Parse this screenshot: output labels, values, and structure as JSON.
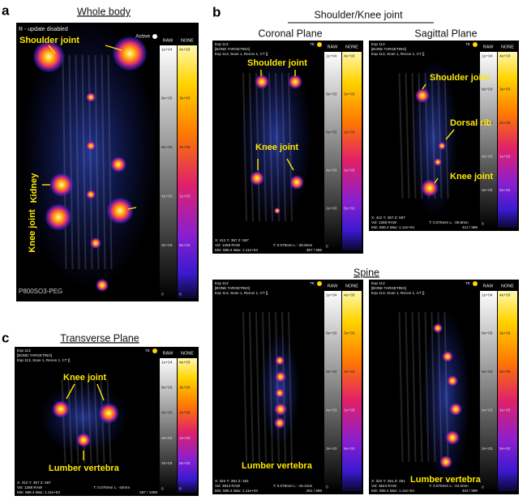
{
  "panels": {
    "a": {
      "label": "a",
      "title": "Whole body",
      "image": {
        "header": [
          "R - update disabled"
        ],
        "status": [
          "Active"
        ],
        "scale_heads": [
          "RAW",
          "NONE"
        ],
        "raw_ticks": [
          "1e+04",
          "8e+03",
          "6e+03",
          "4e+03",
          "2e+03",
          "0"
        ],
        "color_ticks": [
          "4e+03",
          "3e+03",
          "2e+03",
          "1e+03",
          "5e+02",
          "0"
        ],
        "annotations": [
          "Shoulder joint",
          "Kidney",
          "Knee joint"
        ],
        "footer": [
          "P800SO3-PEG"
        ]
      }
    },
    "b": {
      "label": "b",
      "title": "Shoulder/Knee joint",
      "planes": [
        "Coronal Plane",
        "Sagittal Plane"
      ],
      "images": [
        {
          "header": [
            "Exp 113",
            "[BONE TARGETING]",
            "Exp 113, Scan 1, Recon 1, CT []"
          ],
          "status": [
            "TE"
          ],
          "scale_heads": [
            "RAW",
            "NONE"
          ],
          "raw_ticks": [
            "1e+04",
            "8e+03",
            "6e+03",
            "4e+03",
            "2e+03",
            "0"
          ],
          "color_ticks": [
            "4e+03",
            "3e+03",
            "2e+03",
            "1e+03",
            "5e+02"
          ],
          "annotations": [
            "Shoulder joint",
            "Knee joint"
          ],
          "footer": [
            "X: 412 Y: 357 Z: 587",
            "Vol: 1268 RAW",
            "Min: 586.4 Max: 1.11e+04",
            "T: 0.075mm L: -39.8mm",
            "357 / 599"
          ]
        },
        {
          "header": [
            "Exp 113",
            "[BONE TARGETING]",
            "Exp 113, Scan 1, Recon 1, CT []"
          ],
          "status": [
            "TE"
          ],
          "scale_heads": [
            "RAW",
            "NONE"
          ],
          "raw_ticks": [
            "1e+04",
            "8e+03",
            "6e+03",
            "4e+03",
            "2e+03",
            "0"
          ],
          "color_ticks": [
            "4e+03",
            "3e+03",
            "2e+03",
            "1e+03",
            "5e+02"
          ],
          "annotations": [
            "Shoulder joint",
            "Dorsal rib",
            "Knee joint"
          ],
          "footer": [
            "X: 412 Y: 357 Z: 587",
            "Vol: 1268 RAW",
            "Min: 586.4 Max: 1.11e+04",
            "T: 0.075mm L: -39.8mm",
            "412 / 599"
          ]
        }
      ],
      "spine_title": "Spine",
      "spine_images": [
        {
          "header": [
            "Exp 113",
            "[BONE TARGETING]",
            "Exp 113, Scan 1, Recon 1, CT []"
          ],
          "status": [
            "TE"
          ],
          "scale_heads": [
            "RAW",
            "NONE"
          ],
          "raw_ticks": [
            "1e+04",
            "8e+03",
            "6e+03",
            "4e+03",
            "2e+03",
            "0"
          ],
          "color_ticks": [
            "4e+03",
            "3e+03",
            "2e+03",
            "1e+03",
            "5e+02"
          ],
          "annotations": [
            "Lumber vertebra"
          ],
          "footer": [
            "X: 322 Y: 261 Z: 451",
            "Vol: 3643 RAW",
            "Min: 586.4 Max: 1.11e+04",
            "T: 0.075mm L: -16.1mm",
            "261 / 599"
          ]
        },
        {
          "header": [
            "Exp 113",
            "[BONE TARGETING]",
            "Exp 113, Scan 1, Recon 1, CT []"
          ],
          "status": [
            "TE"
          ],
          "scale_heads": [
            "RAW",
            "NONE"
          ],
          "raw_ticks": [
            "1e+04",
            "8e+03",
            "6e+03",
            "4e+03",
            "2e+03",
            "0"
          ],
          "color_ticks": [
            "4e+03",
            "3e+03",
            "2e+03",
            "1e+03",
            "5e+02"
          ],
          "annotations": [
            "Lumber vertebra"
          ],
          "footer": [
            "X: 322 Y: 261 Z: 451",
            "Vol: 3643 RAW",
            "Min: 586.4 Max: 1.11e+04",
            "T: 0.075mm L: -24.3mm",
            "322 / 599"
          ]
        }
      ]
    },
    "c": {
      "label": "c",
      "title": "Transverse Plane",
      "image": {
        "header": [
          "Exp 113",
          "[BONE TARGETING]",
          "Exp 113, Scan 1, Recon 1, CT []"
        ],
        "status": [
          "TE"
        ],
        "scale_heads": [
          "RAW",
          "NONE"
        ],
        "raw_ticks": [
          "1e+04",
          "8e+03",
          "6e+03",
          "4e+03",
          "2e+03",
          "0"
        ],
        "color_ticks": [
          "4e+03",
          "3e+03",
          "2e+03",
          "1e+03",
          "5e+02",
          "0"
        ],
        "annotations": [
          "Knee joint",
          "Lumber vertebra"
        ],
        "footer": [
          "X: 412 Y: 357 Z: 587",
          "Vol: 1268 RAW",
          "Min: 586.4 Max: 1.11e+04",
          "T: 0.075mm L: -44mm",
          "587 / 1095"
        ]
      }
    }
  }
}
